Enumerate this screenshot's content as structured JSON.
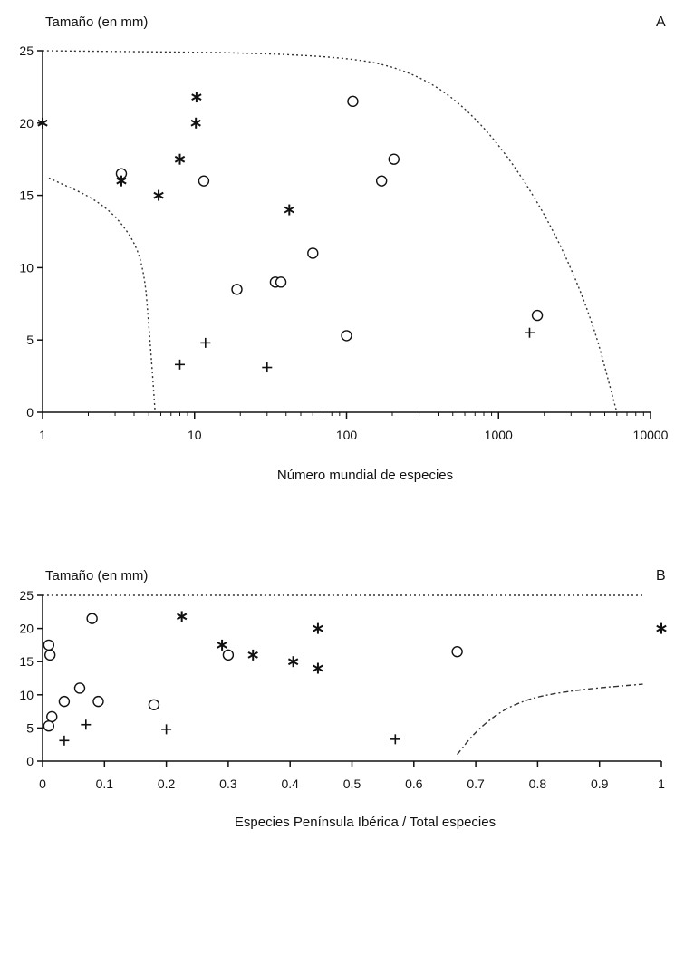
{
  "chart_data": [
    {
      "type": "scatter",
      "panel": "A",
      "ylabel": "Tamaño (en mm)",
      "xlabel": "Número mundial de especies",
      "xscale": "log",
      "xlim": [
        1,
        10000
      ],
      "ylim": [
        0,
        25
      ],
      "xticks": [
        1,
        10,
        100,
        1000,
        10000
      ],
      "xtick_labels": [
        "1",
        "10",
        "100",
        "1000",
        "10000"
      ],
      "yticks": [
        0,
        5,
        10,
        15,
        20,
        25
      ],
      "ytick_labels": [
        "0",
        "5",
        "10",
        "15",
        "20",
        "25"
      ],
      "grid": false,
      "series": [
        {
          "marker": "circle",
          "points": [
            {
              "x": 3.3,
              "y": 16.5
            },
            {
              "x": 11.5,
              "y": 16
            },
            {
              "x": 19,
              "y": 8.5
            },
            {
              "x": 34,
              "y": 9
            },
            {
              "x": 37,
              "y": 9
            },
            {
              "x": 60,
              "y": 11
            },
            {
              "x": 100,
              "y": 5.3
            },
            {
              "x": 110,
              "y": 21.5
            },
            {
              "x": 170,
              "y": 16
            },
            {
              "x": 205,
              "y": 17.5
            },
            {
              "x": 1800,
              "y": 6.7
            }
          ]
        },
        {
          "marker": "asterisk",
          "points": [
            {
              "x": 1,
              "y": 20
            },
            {
              "x": 3.3,
              "y": 16
            },
            {
              "x": 5.8,
              "y": 15
            },
            {
              "x": 8,
              "y": 17.5
            },
            {
              "x": 10.3,
              "y": 21.8
            },
            {
              "x": 10.2,
              "y": 20
            },
            {
              "x": 42,
              "y": 14
            }
          ]
        },
        {
          "marker": "plus",
          "points": [
            {
              "x": 8,
              "y": 3.3
            },
            {
              "x": 11.8,
              "y": 4.8
            },
            {
              "x": 30,
              "y": 3.1
            },
            {
              "x": 1600,
              "y": 5.5
            }
          ]
        }
      ],
      "boundaries": [
        {
          "style": "dotted",
          "points": [
            [
              1,
              25
            ],
            [
              80,
              24.8
            ],
            [
              300,
              23.5
            ],
            [
              800,
              20
            ],
            [
              2000,
              14
            ],
            [
              4000,
              7
            ],
            [
              6000,
              0
            ]
          ]
        },
        {
          "style": "dotted",
          "points": [
            [
              1.1,
              16.2
            ],
            [
              2.5,
              14.5
            ],
            [
              4,
              12
            ],
            [
              4.7,
              9.5
            ],
            [
              5,
              6
            ],
            [
              5.3,
              2.5
            ],
            [
              5.5,
              0
            ]
          ]
        }
      ]
    },
    {
      "type": "scatter",
      "panel": "B",
      "ylabel": "Tamaño (en mm)",
      "xlabel": "Especies Península Ibérica / Total especies",
      "xlim": [
        0,
        1
      ],
      "ylim": [
        0,
        25
      ],
      "xticks": [
        0,
        0.1,
        0.2,
        0.3,
        0.4,
        0.5,
        0.6,
        0.7,
        0.8,
        0.9,
        1
      ],
      "xtick_labels": [
        "0",
        "0.1",
        "0.2",
        "0.3",
        "0.4",
        "0.5",
        "0.6",
        "0.7",
        "0.8",
        "0.9",
        "1"
      ],
      "yticks": [
        0,
        5,
        10,
        15,
        20,
        25
      ],
      "ytick_labels": [
        "0",
        "5",
        "10",
        "15",
        "20",
        "25"
      ],
      "grid": false,
      "series": [
        {
          "marker": "circle",
          "points": [
            {
              "x": 0.01,
              "y": 17.5
            },
            {
              "x": 0.012,
              "y": 16
            },
            {
              "x": 0.08,
              "y": 21.5
            },
            {
              "x": 0.06,
              "y": 11
            },
            {
              "x": 0.035,
              "y": 9
            },
            {
              "x": 0.09,
              "y": 9
            },
            {
              "x": 0.18,
              "y": 8.5
            },
            {
              "x": 0.015,
              "y": 6.7
            },
            {
              "x": 0.01,
              "y": 5.3
            },
            {
              "x": 0.3,
              "y": 16
            },
            {
              "x": 0.67,
              "y": 16.5
            }
          ]
        },
        {
          "marker": "asterisk",
          "points": [
            {
              "x": 0.225,
              "y": 21.8
            },
            {
              "x": 0.29,
              "y": 17.5
            },
            {
              "x": 0.34,
              "y": 16
            },
            {
              "x": 0.405,
              "y": 15
            },
            {
              "x": 0.445,
              "y": 20
            },
            {
              "x": 0.445,
              "y": 14
            },
            {
              "x": 1.0,
              "y": 20
            }
          ]
        },
        {
          "marker": "plus",
          "points": [
            {
              "x": 0.07,
              "y": 5.5
            },
            {
              "x": 0.2,
              "y": 4.8
            },
            {
              "x": 0.035,
              "y": 3.1
            },
            {
              "x": 0.57,
              "y": 3.3
            }
          ]
        }
      ],
      "boundaries": [
        {
          "style": "dotted",
          "points": [
            [
              0,
              25
            ],
            [
              0.97,
              25
            ]
          ]
        },
        {
          "style": "dashed",
          "points": [
            [
              0.67,
              1
            ],
            [
              0.7,
              4.5
            ],
            [
              0.74,
              7.5
            ],
            [
              0.78,
              9.2
            ],
            [
              0.82,
              10.1
            ],
            [
              0.88,
              10.9
            ],
            [
              0.97,
              11.6
            ]
          ]
        }
      ]
    }
  ]
}
